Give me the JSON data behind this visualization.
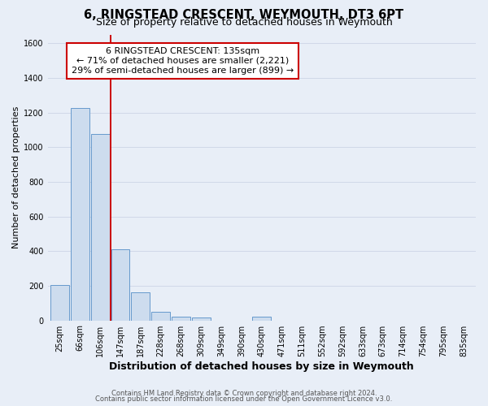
{
  "title": "6, RINGSTEAD CRESCENT, WEYMOUTH, DT3 6PT",
  "subtitle": "Size of property relative to detached houses in Weymouth",
  "xlabel": "Distribution of detached houses by size in Weymouth",
  "ylabel": "Number of detached properties",
  "bar_labels": [
    "25sqm",
    "66sqm",
    "106sqm",
    "147sqm",
    "187sqm",
    "228sqm",
    "268sqm",
    "309sqm",
    "349sqm",
    "390sqm",
    "430sqm",
    "471sqm",
    "511sqm",
    "552sqm",
    "592sqm",
    "633sqm",
    "673sqm",
    "714sqm",
    "754sqm",
    "795sqm",
    "835sqm"
  ],
  "bar_values": [
    205,
    1225,
    1075,
    410,
    160,
    50,
    20,
    15,
    0,
    0,
    20,
    0,
    0,
    0,
    0,
    0,
    0,
    0,
    0,
    0,
    0
  ],
  "bar_color": "#cddcee",
  "bar_edge_color": "#6699cc",
  "background_color": "#e8eef7",
  "grid_color": "#d0d8e8",
  "annotation_line1": "6 RINGSTEAD CRESCENT: 135sqm",
  "annotation_line2": "← 71% of detached houses are smaller (2,221)",
  "annotation_line3": "29% of semi-detached houses are larger (899) →",
  "ylim": [
    0,
    1650
  ],
  "yticks": [
    0,
    200,
    400,
    600,
    800,
    1000,
    1200,
    1400,
    1600
  ],
  "footer1": "Contains HM Land Registry data © Crown copyright and database right 2024.",
  "footer2": "Contains public sector information licensed under the Open Government Licence v3.0.",
  "title_fontsize": 10.5,
  "subtitle_fontsize": 9,
  "xlabel_fontsize": 9,
  "ylabel_fontsize": 8,
  "tick_fontsize": 7,
  "annotation_fontsize": 8,
  "footer_fontsize": 6
}
